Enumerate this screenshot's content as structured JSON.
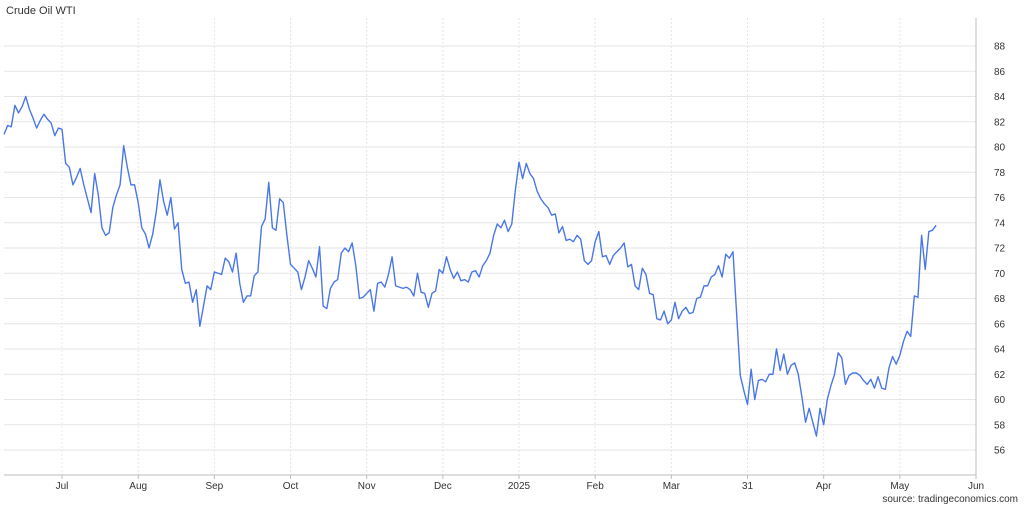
{
  "title": "Crude Oil WTI",
  "source": "source: tradingeconomics.com",
  "colors": {
    "line": "#4a77e8",
    "grid": "#e6e6e6",
    "axis": "#bdbdbd"
  },
  "chart_data": {
    "type": "line",
    "title": "Crude Oil WTI",
    "xlabel": "",
    "ylabel": "",
    "ylim": [
      54,
      90
    ],
    "y_ticks": [
      56,
      58,
      60,
      62,
      64,
      66,
      68,
      70,
      72,
      74,
      76,
      78,
      80,
      82,
      84,
      86,
      88
    ],
    "x_ticks": [
      {
        "label": "Jul",
        "index": 16
      },
      {
        "label": "Aug",
        "index": 37
      },
      {
        "label": "Sep",
        "index": 58
      },
      {
        "label": "Oct",
        "index": 79
      },
      {
        "label": "Nov",
        "index": 100
      },
      {
        "label": "Dec",
        "index": 121
      },
      {
        "label": "2025",
        "index": 142
      },
      {
        "label": "Feb",
        "index": 163
      },
      {
        "label": "Mar",
        "index": 184
      },
      {
        "label": "31",
        "index": 205
      },
      {
        "label": "Apr",
        "index": 226
      },
      {
        "label": "May",
        "index": 247
      },
      {
        "label": "Jun",
        "index": 268
      }
    ],
    "grid": true,
    "series": [
      {
        "values": [
          81.0,
          81.7,
          81.6,
          83.3,
          82.7,
          83.2,
          84.0,
          83.0,
          82.3,
          81.5,
          82.1,
          82.6,
          82.2,
          81.9,
          80.9,
          81.5,
          81.4,
          78.7,
          78.4,
          77.0,
          77.6,
          78.3,
          77.0,
          75.9,
          74.8,
          77.9,
          76.2,
          73.6,
          73.0,
          73.2,
          75.2,
          76.2,
          77.0,
          80.1,
          78.4,
          77.0,
          77.0,
          75.6,
          73.6,
          73.1,
          72.0,
          73.1,
          74.9,
          77.4,
          75.7,
          74.6,
          76.0,
          73.5,
          74.0,
          70.3,
          69.2,
          69.3,
          67.7,
          68.7,
          65.8,
          67.4,
          69.0,
          68.7,
          70.1,
          70.0,
          69.9,
          71.2,
          70.9,
          70.1,
          71.6,
          69.2,
          67.7,
          68.2,
          68.2,
          69.8,
          70.1,
          73.7,
          74.3,
          77.2,
          73.6,
          73.4,
          75.9,
          75.6,
          73.0,
          70.7,
          70.4,
          70.1,
          68.7,
          69.7,
          71.0,
          70.4,
          69.7,
          72.1,
          67.4,
          67.2,
          68.8,
          69.3,
          69.5,
          71.6,
          72.0,
          71.7,
          72.4,
          70.6,
          68.0,
          68.1,
          68.4,
          68.7,
          67.0,
          69.2,
          69.3,
          68.9,
          69.9,
          71.3,
          69.0,
          68.9,
          68.8,
          68.9,
          68.7,
          68.2,
          70.0,
          68.5,
          68.4,
          67.3,
          68.4,
          68.6,
          70.3,
          70.0,
          71.3,
          70.3,
          69.6,
          70.1,
          69.4,
          69.5,
          69.3,
          70.1,
          70.2,
          69.7,
          70.6,
          71.0,
          71.6,
          73.0,
          73.9,
          73.6,
          74.2,
          73.3,
          73.9,
          76.6,
          78.8,
          77.5,
          78.7,
          77.9,
          77.5,
          76.5,
          75.9,
          75.5,
          75.2,
          74.6,
          74.7,
          73.2,
          73.7,
          72.6,
          72.7,
          72.5,
          73.0,
          72.7,
          71.0,
          70.7,
          71.0,
          72.5,
          73.3,
          71.3,
          71.4,
          70.7,
          71.4,
          71.7,
          72.0,
          72.4,
          70.5,
          70.7,
          69.0,
          68.7,
          70.4,
          69.9,
          68.4,
          68.3,
          66.4,
          66.3,
          67.0,
          66.0,
          66.3,
          67.7,
          66.4,
          67.0,
          67.3,
          66.8,
          66.9,
          68.0,
          68.1,
          69.0,
          69.0,
          69.7,
          69.9,
          70.6,
          69.7,
          71.5,
          71.2,
          71.7,
          66.8,
          61.9,
          60.7,
          59.6,
          62.4,
          60.0,
          61.5,
          61.6,
          61.4,
          62.0,
          62.0,
          64.0,
          62.3,
          63.6,
          62.0,
          62.7,
          62.9,
          62.0,
          60.2,
          58.2,
          59.3,
          58.2,
          57.1,
          59.3,
          58.0,
          60.0,
          61.1,
          62.0,
          63.7,
          63.3,
          61.2,
          61.9,
          62.1,
          62.1,
          61.9,
          61.5,
          61.2,
          61.6,
          60.9,
          61.8,
          60.9,
          60.8,
          62.5,
          63.4,
          62.8,
          63.5,
          64.6,
          65.4,
          65.0,
          68.2,
          68.1,
          73.0,
          70.3,
          73.3,
          73.4,
          73.8
        ]
      }
    ]
  }
}
